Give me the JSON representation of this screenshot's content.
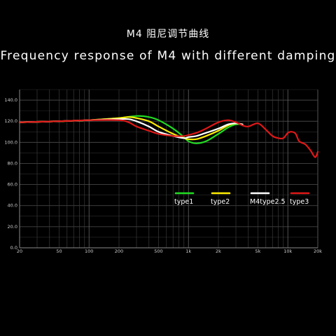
{
  "title_cn": "M4  阻尼调节曲线",
  "title_en": "Frequency response of M4 with different damping",
  "chart_data": {
    "type": "line",
    "title": "Frequency response of M4 with different damping",
    "xscale": "log",
    "xlim": [
      20,
      20000
    ],
    "ylim": [
      0,
      150
    ],
    "x_ticks": [
      {
        "v": 20,
        "label": "20"
      },
      {
        "v": 50,
        "label": "50"
      },
      {
        "v": 100,
        "label": "100"
      },
      {
        "v": 200,
        "label": "200"
      },
      {
        "v": 500,
        "label": "500"
      },
      {
        "v": 1000,
        "label": "1k"
      },
      {
        "v": 2000,
        "label": "2k"
      },
      {
        "v": 5000,
        "label": "5k"
      },
      {
        "v": 10000,
        "label": "10k"
      },
      {
        "v": 20000,
        "label": "20k"
      }
    ],
    "y_ticks": [
      {
        "v": 0,
        "label": "0.0"
      },
      {
        "v": 20,
        "label": "20.0"
      },
      {
        "v": 40,
        "label": "40.0"
      },
      {
        "v": 60,
        "label": "60.0"
      },
      {
        "v": 80,
        "label": "80.0"
      },
      {
        "v": 100,
        "label": "100.0"
      },
      {
        "v": 120,
        "label": "120.0"
      },
      {
        "v": 140,
        "label": "140.0"
      }
    ],
    "grid": true,
    "legend_position": "middle-right",
    "series": [
      {
        "name": "type1",
        "color": "#22dd22",
        "points": [
          [
            20,
            119
          ],
          [
            50,
            120
          ],
          [
            100,
            121
          ],
          [
            200,
            123
          ],
          [
            300,
            125
          ],
          [
            400,
            124
          ],
          [
            500,
            121
          ],
          [
            700,
            113
          ],
          [
            900,
            105
          ],
          [
            1000,
            101
          ],
          [
            1200,
            99
          ],
          [
            1500,
            101
          ],
          [
            2000,
            108
          ],
          [
            2500,
            114
          ],
          [
            3000,
            117
          ],
          [
            3500,
            117
          ]
        ]
      },
      {
        "name": "type2",
        "color": "#ffee00",
        "points": [
          [
            20,
            119
          ],
          [
            50,
            120
          ],
          [
            100,
            121
          ],
          [
            200,
            123
          ],
          [
            250,
            124
          ],
          [
            300,
            123
          ],
          [
            400,
            120
          ],
          [
            500,
            115
          ],
          [
            700,
            108
          ],
          [
            900,
            104
          ],
          [
            1000,
            103
          ],
          [
            1200,
            103
          ],
          [
            1500,
            106
          ],
          [
            2000,
            111
          ],
          [
            2500,
            116
          ],
          [
            3000,
            118
          ],
          [
            3500,
            117
          ]
        ]
      },
      {
        "name": "M4type2.5",
        "color": "#ffffff",
        "points": [
          [
            20,
            119
          ],
          [
            50,
            120
          ],
          [
            100,
            121
          ],
          [
            200,
            122
          ],
          [
            250,
            122
          ],
          [
            300,
            120
          ],
          [
            400,
            115
          ],
          [
            500,
            110
          ],
          [
            700,
            106
          ],
          [
            900,
            104
          ],
          [
            1000,
            105
          ],
          [
            1200,
            106
          ],
          [
            1500,
            109
          ],
          [
            2000,
            113
          ],
          [
            2500,
            117
          ],
          [
            3000,
            118
          ],
          [
            3500,
            117
          ]
        ]
      },
      {
        "name": "type3",
        "color": "#e01818",
        "points": [
          [
            20,
            119
          ],
          [
            50,
            120
          ],
          [
            100,
            121
          ],
          [
            200,
            121
          ],
          [
            250,
            119
          ],
          [
            300,
            115
          ],
          [
            400,
            111
          ],
          [
            500,
            108
          ],
          [
            700,
            106
          ],
          [
            900,
            106
          ],
          [
            1000,
            107
          ],
          [
            1200,
            109
          ],
          [
            1500,
            113
          ],
          [
            2000,
            119
          ],
          [
            2500,
            121
          ],
          [
            3000,
            119
          ],
          [
            3500,
            116
          ],
          [
            4000,
            115
          ],
          [
            5000,
            118
          ],
          [
            6000,
            112
          ],
          [
            7000,
            106
          ],
          [
            8000,
            104
          ],
          [
            9000,
            104
          ],
          [
            10000,
            109
          ],
          [
            11000,
            110
          ],
          [
            12000,
            108
          ],
          [
            13000,
            101
          ],
          [
            15000,
            98
          ],
          [
            17000,
            92
          ],
          [
            18000,
            88
          ],
          [
            19000,
            86
          ],
          [
            20000,
            91
          ]
        ]
      }
    ]
  }
}
